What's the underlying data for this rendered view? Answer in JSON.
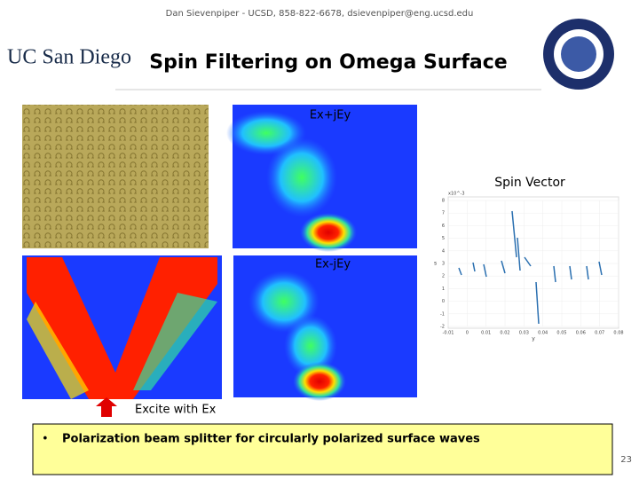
{
  "header": {
    "credit": "Dan Sievenpiper - UCSD, 858-822-6678, dsievenpiper@eng.ucsd.edu",
    "logo": "UC San Diego",
    "title": "Spin Filtering on Omega Surface"
  },
  "figures": {
    "top_label": "Ex+jEy",
    "bottom_label": "Ex-jEy",
    "plot_label": "Spin Vector",
    "excite_label": "Excite with Ex"
  },
  "spin_plot": {
    "exponent": "x10^-3",
    "ylabel": "s",
    "xlabel": "y",
    "xlim": [
      -0.01,
      0.08
    ],
    "xticks": [
      -0.01,
      0,
      0.01,
      0.02,
      0.03,
      0.04,
      0.05,
      0.06,
      0.07,
      0.08
    ],
    "ylim": [
      -2,
      8
    ],
    "yticks": [
      -2,
      -1,
      0,
      1,
      2,
      3,
      4,
      5,
      6,
      7,
      8
    ]
  },
  "bullet": "Polarization beam splitter for circularly polarized surface waves",
  "page_number": "23"
}
